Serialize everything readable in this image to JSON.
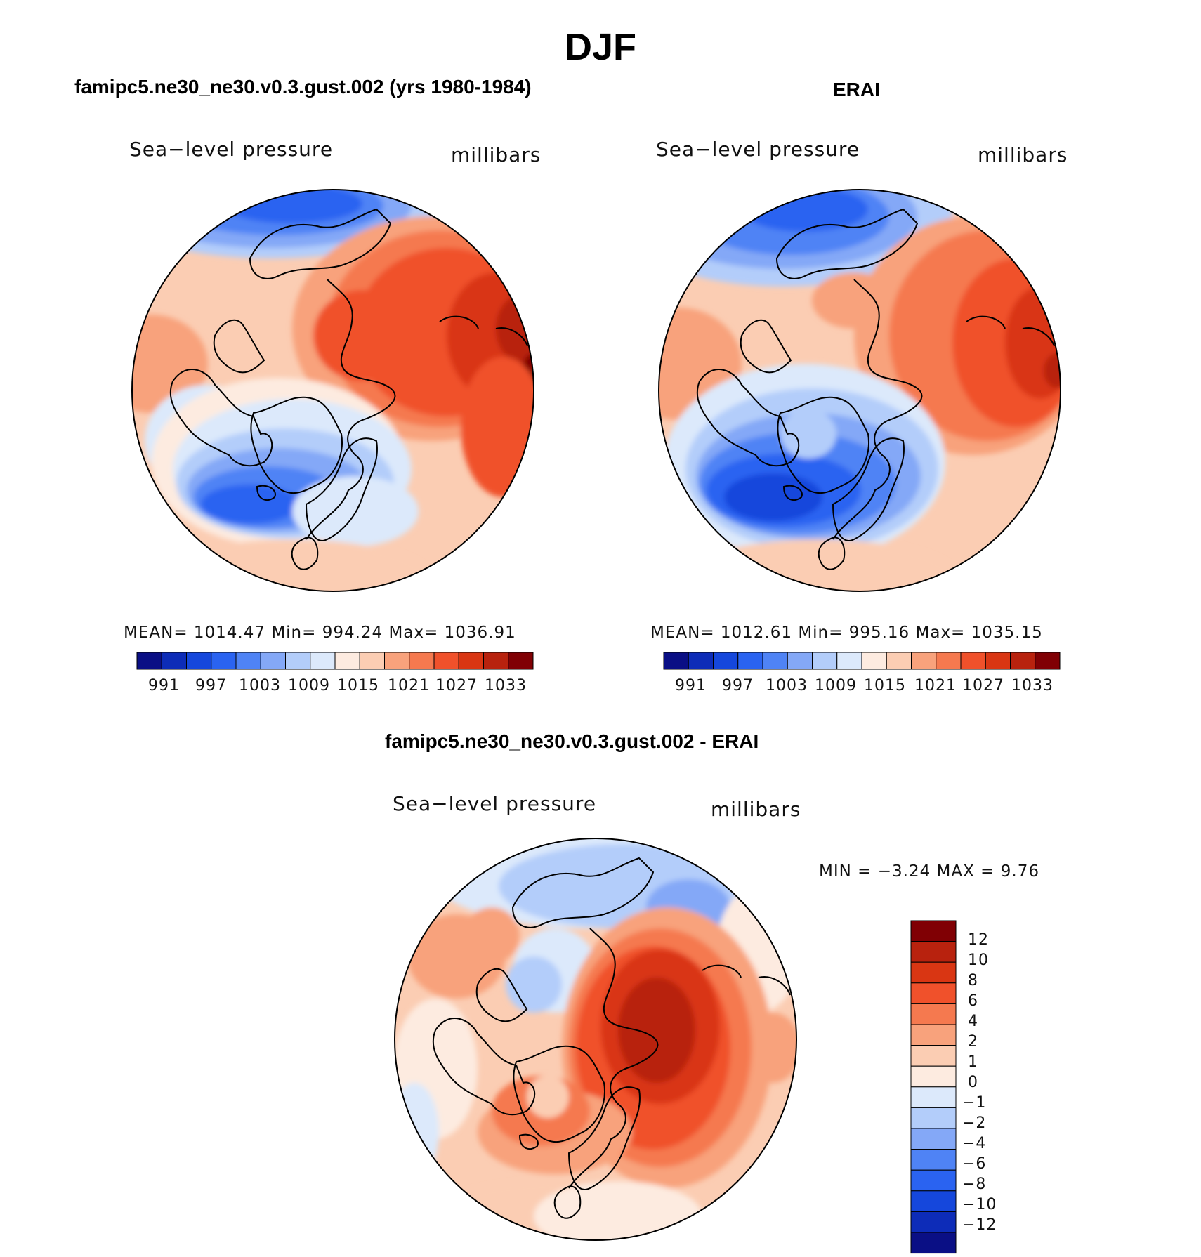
{
  "title": "DJF",
  "colors": {
    "abs_palette": [
      "#0a0f85",
      "#0d2cb8",
      "#1547dc",
      "#2a63f1",
      "#4f83f5",
      "#84a8f7",
      "#b3cdfa",
      "#dce9fb",
      "#fdebe0",
      "#fbcdb3",
      "#f8a27c",
      "#f5794f",
      "#f0512b",
      "#d93613",
      "#b8220e",
      "#800004"
    ],
    "diff_palette": [
      "#0a0f85",
      "#0d2cb8",
      "#1547dc",
      "#2a63f1",
      "#4f83f5",
      "#84a8f7",
      "#b3cdfa",
      "#dce9fb",
      "#fdebe0",
      "#fbcdb3",
      "#f8a27c",
      "#f5794f",
      "#f0512b",
      "#d93613",
      "#b8220e",
      "#800004"
    ]
  },
  "panels": [
    {
      "id": "model",
      "title": "famipc5.ne30_ne30.v0.3.gust.002 (yrs 1980-1984)",
      "variable": "Sea−level pressure",
      "units": "millibars",
      "stats": "MEAN=  1014.47    Min=  994.24    Max=  1036.91",
      "colorbar_labels": [
        "991",
        "997",
        "1003",
        "1009",
        "1015",
        "1021",
        "1027",
        "1033"
      ]
    },
    {
      "id": "obs",
      "title": "ERAI",
      "variable": "Sea−level pressure",
      "units": "millibars",
      "stats": "MEAN=  1012.61    Min=  995.16    Max=  1035.15",
      "colorbar_labels": [
        "991",
        "997",
        "1003",
        "1009",
        "1015",
        "1021",
        "1027",
        "1033"
      ]
    },
    {
      "id": "diff",
      "title": "famipc5.ne30_ne30.v0.3.gust.002 - ERAI",
      "variable": "Sea−level pressure",
      "units": "millibars",
      "stats": "MIN  =    −3.24  MAX  =      9.76",
      "colorbar_labels": [
        "12",
        "10",
        "8",
        "6",
        "4",
        "2",
        "1",
        "0",
        "−1",
        "−2",
        "−4",
        "−6",
        "−8",
        "−10",
        "−12"
      ]
    }
  ],
  "chart_data": [
    {
      "type": "heatmap",
      "projection": "north polar stereographic",
      "title": "famipc5.ne30_ne30.v0.3.gust.002 (yrs 1980-1984)",
      "variable": "Sea−level pressure",
      "units": "millibars",
      "mean": 1014.47,
      "min": 994.24,
      "max": 1036.91,
      "contour_levels": [
        991,
        994,
        997,
        1000,
        1003,
        1006,
        1009,
        1012,
        1015,
        1018,
        1021,
        1024,
        1027,
        1030,
        1033
      ],
      "colorbar_tick_labels": [
        991,
        997,
        1003,
        1009,
        1015,
        1021,
        1027,
        1033
      ]
    },
    {
      "type": "heatmap",
      "projection": "north polar stereographic",
      "title": "ERAI",
      "variable": "Sea−level pressure",
      "units": "millibars",
      "mean": 1012.61,
      "min": 995.16,
      "max": 1035.15,
      "contour_levels": [
        991,
        994,
        997,
        1000,
        1003,
        1006,
        1009,
        1012,
        1015,
        1018,
        1021,
        1024,
        1027,
        1030,
        1033
      ],
      "colorbar_tick_labels": [
        991,
        997,
        1003,
        1009,
        1015,
        1021,
        1027,
        1033
      ]
    },
    {
      "type": "heatmap",
      "projection": "north polar stereographic",
      "title": "famipc5.ne30_ne30.v0.3.gust.002 - ERAI",
      "variable": "Sea−level pressure",
      "units": "millibars",
      "min": -3.24,
      "max": 9.76,
      "contour_levels": [
        -12,
        -10,
        -8,
        -6,
        -4,
        -2,
        -1,
        0,
        1,
        2,
        4,
        6,
        8,
        10,
        12
      ],
      "colorbar_tick_labels": [
        12,
        10,
        8,
        6,
        4,
        2,
        1,
        0,
        -1,
        -2,
        -4,
        -6,
        -8,
        -10,
        -12
      ]
    }
  ]
}
